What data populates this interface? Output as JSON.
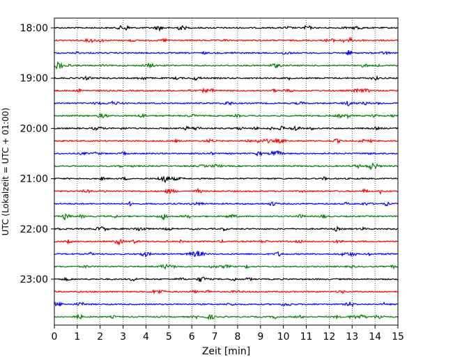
{
  "chart_data": {
    "type": "line",
    "title": "",
    "xlabel": "Zeit  [min]",
    "ylabel": "UTC (Lokalzeit = UTC + 01:00)",
    "xlim": [
      0,
      15
    ],
    "x_ticks": [
      "0",
      "1",
      "2",
      "3",
      "4",
      "5",
      "6",
      "7",
      "8",
      "9",
      "10",
      "11",
      "12",
      "13",
      "14",
      "15"
    ],
    "y_ticks": [
      "18:00",
      "19:00",
      "20:00",
      "21:00",
      "22:00",
      "23:00"
    ],
    "grid": "vertical-dotted",
    "legend": "none",
    "trace_colors": [
      "#000000",
      "#ff0000",
      "#0000ff",
      "#007f00"
    ],
    "traces": [
      {
        "start": "18:00"
      },
      {
        "start": "18:15"
      },
      {
        "start": "18:30"
      },
      {
        "start": "18:45"
      },
      {
        "start": "19:00"
      },
      {
        "start": "19:15"
      },
      {
        "start": "19:30"
      },
      {
        "start": "19:45"
      },
      {
        "start": "20:00"
      },
      {
        "start": "20:15"
      },
      {
        "start": "20:30"
      },
      {
        "start": "20:45"
      },
      {
        "start": "21:00"
      },
      {
        "start": "21:15"
      },
      {
        "start": "21:30"
      },
      {
        "start": "21:45"
      },
      {
        "start": "22:00"
      },
      {
        "start": "22:15"
      },
      {
        "start": "22:30"
      },
      {
        "start": "22:45"
      },
      {
        "start": "23:00"
      },
      {
        "start": "23:15"
      },
      {
        "start": "23:30"
      },
      {
        "start": "23:45"
      }
    ]
  }
}
